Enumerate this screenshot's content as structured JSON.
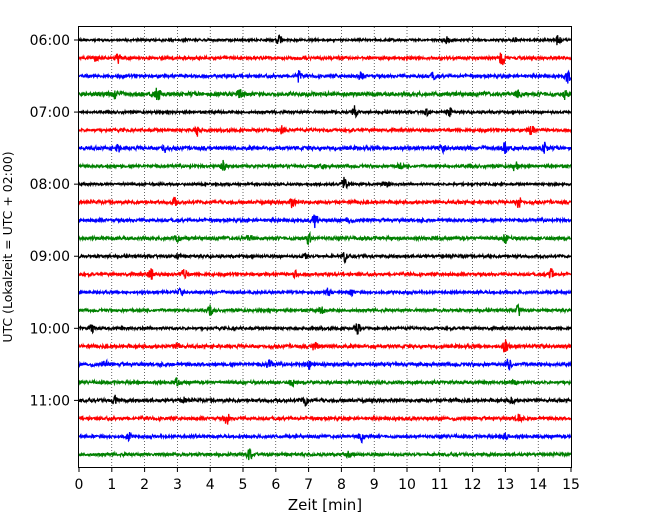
{
  "chart_data": {
    "type": "line",
    "subtype": "helicorder",
    "xlabel": "Zeit  [min]",
    "ylabel": "UTC (Lokalzeit = UTC + 02:00)",
    "xlim": [
      0,
      15
    ],
    "x_ticks": [
      "0",
      "1",
      "2",
      "3",
      "4",
      "5",
      "6",
      "7",
      "8",
      "9",
      "10",
      "11",
      "12",
      "13",
      "14",
      "15"
    ],
    "y_ticks": [
      "06:00",
      "07:00",
      "08:00",
      "09:00",
      "10:00",
      "11:00"
    ],
    "grid": "vertical dotted at each minute",
    "trace_colors": [
      "#000000",
      "#ff0000",
      "#0000ff",
      "#008000"
    ],
    "traces": [
      {
        "time": "06:00",
        "noise": 1.0,
        "events": [
          [
            6.1,
            6
          ],
          [
            14.6,
            5
          ],
          [
            11.2,
            3
          ],
          [
            13.3,
            2
          ]
        ]
      },
      {
        "time": "06:15",
        "noise": 1.3,
        "events": [
          [
            1.2,
            5
          ],
          [
            12.9,
            8
          ],
          [
            0.5,
            3
          ]
        ]
      },
      {
        "time": "06:30",
        "noise": 1.4,
        "events": [
          [
            6.7,
            5
          ],
          [
            8.6,
            4
          ],
          [
            10.8,
            3
          ],
          [
            14.9,
            6
          ]
        ]
      },
      {
        "time": "06:45",
        "noise": 1.8,
        "events": [
          [
            1.1,
            5
          ],
          [
            2.4,
            7
          ],
          [
            4.9,
            5
          ],
          [
            13.4,
            4
          ],
          [
            14.8,
            5
          ]
        ]
      },
      {
        "time": "07:00",
        "noise": 1.1,
        "events": [
          [
            8.4,
            6
          ],
          [
            11.3,
            4
          ],
          [
            10.6,
            3
          ]
        ]
      },
      {
        "time": "07:15",
        "noise": 1.3,
        "events": [
          [
            3.6,
            6
          ],
          [
            6.2,
            4
          ],
          [
            13.8,
            5
          ]
        ]
      },
      {
        "time": "07:30",
        "noise": 1.6,
        "events": [
          [
            1.2,
            3
          ],
          [
            2.6,
            4
          ],
          [
            11.1,
            3
          ],
          [
            13.0,
            6
          ],
          [
            14.2,
            5
          ]
        ]
      },
      {
        "time": "07:45",
        "noise": 1.3,
        "events": [
          [
            4.4,
            5
          ],
          [
            7.4,
            3
          ],
          [
            9.8,
            4
          ],
          [
            13.3,
            5
          ]
        ]
      },
      {
        "time": "08:00",
        "noise": 1.0,
        "events": [
          [
            8.1,
            7
          ],
          [
            9.4,
            3
          ]
        ]
      },
      {
        "time": "08:15",
        "noise": 1.4,
        "events": [
          [
            2.9,
            4
          ],
          [
            6.5,
            5
          ],
          [
            13.4,
            6
          ]
        ]
      },
      {
        "time": "08:30",
        "noise": 1.4,
        "events": [
          [
            7.2,
            7
          ],
          [
            8.2,
            3
          ]
        ]
      },
      {
        "time": "08:45",
        "noise": 1.5,
        "events": [
          [
            3.0,
            4
          ],
          [
            5.2,
            4
          ],
          [
            7.0,
            5
          ],
          [
            13.0,
            4
          ]
        ]
      },
      {
        "time": "09:00",
        "noise": 1.2,
        "events": [
          [
            8.1,
            6
          ],
          [
            6.9,
            3
          ],
          [
            3.0,
            3
          ]
        ]
      },
      {
        "time": "09:15",
        "noise": 1.3,
        "events": [
          [
            2.2,
            5
          ],
          [
            3.2,
            6
          ],
          [
            6.6,
            3
          ],
          [
            14.4,
            5
          ]
        ]
      },
      {
        "time": "09:30",
        "noise": 1.2,
        "events": [
          [
            3.1,
            3
          ],
          [
            7.6,
            4
          ],
          [
            8.3,
            3
          ]
        ]
      },
      {
        "time": "09:45",
        "noise": 1.2,
        "events": [
          [
            4.0,
            5
          ],
          [
            7.4,
            3
          ],
          [
            13.4,
            5
          ]
        ]
      },
      {
        "time": "10:00",
        "noise": 1.2,
        "events": [
          [
            0.4,
            4
          ],
          [
            8.5,
            6
          ]
        ]
      },
      {
        "time": "10:15",
        "noise": 1.5,
        "events": [
          [
            3.0,
            4
          ],
          [
            7.2,
            5
          ],
          [
            13.0,
            6
          ]
        ]
      },
      {
        "time": "10:30",
        "noise": 1.5,
        "events": [
          [
            0.8,
            4
          ],
          [
            5.8,
            5
          ],
          [
            7.0,
            5
          ],
          [
            13.1,
            5
          ]
        ]
      },
      {
        "time": "10:45",
        "noise": 1.3,
        "events": [
          [
            3.0,
            4
          ],
          [
            6.5,
            3
          ],
          [
            13.3,
            4
          ]
        ]
      },
      {
        "time": "11:00",
        "noise": 1.4,
        "events": [
          [
            1.1,
            5
          ],
          [
            3.2,
            3
          ],
          [
            6.9,
            5
          ],
          [
            13.2,
            3
          ]
        ]
      },
      {
        "time": "11:15",
        "noise": 1.4,
        "events": [
          [
            4.5,
            6
          ],
          [
            13.4,
            4
          ]
        ]
      },
      {
        "time": "11:30",
        "noise": 1.3,
        "events": [
          [
            1.5,
            4
          ],
          [
            8.6,
            6
          ],
          [
            13.0,
            3
          ]
        ]
      },
      {
        "time": "11:45",
        "noise": 1.3,
        "events": [
          [
            5.2,
            5
          ],
          [
            8.2,
            3
          ]
        ]
      }
    ]
  }
}
